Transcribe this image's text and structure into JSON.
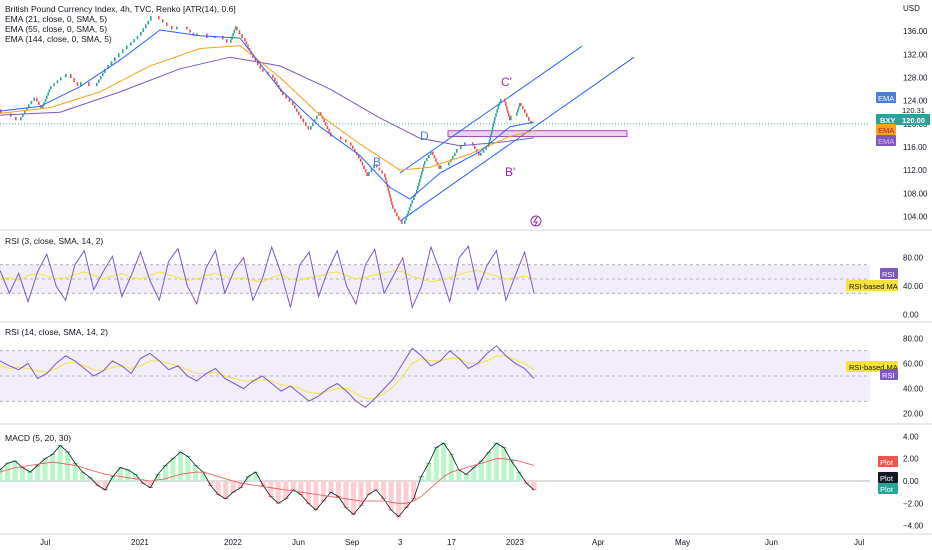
{
  "legend": {
    "title": "British Pound Currency Index, 4h, TVC, Renko [ATR(14), 0.6]",
    "ema21": "EMA (21, close, 0, SMA, 5)",
    "ema55": "EMA (55, close, 0, SMA, 5)",
    "ema144": "EMA (144, close, 0, SMA, 5)",
    "rsi3": "RSI (3, close, SMA, 14, 2)",
    "rsi14": "RSI (14, close, SMA, 14, 2)",
    "macd": "MACD (5, 20, 30)"
  },
  "annotations": {
    "b": "B",
    "d": "D",
    "c": "C'",
    "b2": "B'"
  },
  "tags": {
    "ema1": "EMA",
    "price1": "120.31",
    "sym": "BXY",
    "price2": "120.00",
    "ema2": "EMA",
    "ema3": "EMA",
    "rsi": "RSI",
    "rsima": "RSI-based MA",
    "rsima2": "RSI-based MA",
    "rsi2": "RSI",
    "plot1": "Plot",
    "plot2": "Plot",
    "plot3": "Plot"
  },
  "colors": {
    "up": "#26a69a",
    "down": "#ef5350",
    "ema21": "#2962ff",
    "ema55": "#f7a21b",
    "ema144": "#7e57c2",
    "channel": "#2962ff",
    "zone": "#e1bee7",
    "rsi": "#7e57c2",
    "rsima": "#f5e33b"
  },
  "chart_data": [
    {
      "type": "candlestick",
      "title": "British Pound Currency Index, 4h, TVC, Renko [ATR(14), 0.6]",
      "y_axis_label": "USD",
      "ylim": [
        102,
        140
      ],
      "y_ticks": [
        "136.00",
        "132.00",
        "128.00",
        "124.00",
        "120.00",
        "116.00",
        "112.00",
        "108.00",
        "104.00"
      ],
      "x_ticks": [
        "Jul",
        "2021",
        "2022",
        "Jun",
        "Sep",
        "3",
        "17",
        "2023",
        "Apr",
        "May",
        "Jun",
        "Jul"
      ],
      "close_path": [
        [
          0,
          122.5
        ],
        [
          10,
          121.8
        ],
        [
          20,
          120.6
        ],
        [
          28,
          122.8
        ],
        [
          36,
          124.5
        ],
        [
          42,
          122.6
        ],
        [
          50,
          126.0
        ],
        [
          60,
          127.5
        ],
        [
          70,
          128.6
        ],
        [
          80,
          126.5
        ],
        [
          88,
          127.2
        ],
        [
          96,
          126.5
        ],
        [
          104,
          128.8
        ],
        [
          114,
          130.8
        ],
        [
          122,
          132.2
        ],
        [
          130,
          133.5
        ],
        [
          140,
          135.2
        ],
        [
          150,
          137.8
        ],
        [
          158,
          138.6
        ],
        [
          166,
          137.5
        ],
        [
          176,
          136.3
        ],
        [
          186,
          136.8
        ],
        [
          196,
          135.2
        ],
        [
          206,
          135.6
        ],
        [
          214,
          134.8
        ],
        [
          222,
          135.2
        ],
        [
          230,
          134.0
        ],
        [
          236,
          136.8
        ],
        [
          244,
          134.8
        ],
        [
          252,
          132.0
        ],
        [
          262,
          129.5
        ],
        [
          272,
          128.5
        ],
        [
          282,
          125.5
        ],
        [
          292,
          123.8
        ],
        [
          300,
          121.5
        ],
        [
          310,
          119.0
        ],
        [
          320,
          122.0
        ],
        [
          330,
          118.5
        ],
        [
          340,
          117.8
        ],
        [
          350,
          116.8
        ],
        [
          360,
          114.0
        ],
        [
          368,
          111.0
        ],
        [
          376,
          113.0
        ],
        [
          384,
          111.4
        ],
        [
          392,
          106.0
        ],
        [
          398,
          104.0
        ],
        [
          404,
          102.7
        ],
        [
          410,
          105.6
        ],
        [
          416,
          108.0
        ],
        [
          424,
          113.0
        ],
        [
          432,
          115.2
        ],
        [
          440,
          112.2
        ],
        [
          448,
          112.8
        ],
        [
          456,
          115.0
        ],
        [
          464,
          116.3
        ],
        [
          472,
          116.8
        ],
        [
          480,
          114.5
        ],
        [
          488,
          116.0
        ],
        [
          494,
          120.6
        ],
        [
          500,
          123.8
        ],
        [
          504,
          124.3
        ],
        [
          510,
          120.6
        ],
        [
          516,
          121.4
        ],
        [
          520,
          123.6
        ],
        [
          524,
          122.5
        ],
        [
          530,
          120.5
        ],
        [
          534,
          120.0
        ]
      ],
      "ema21": [
        [
          0,
          122.2
        ],
        [
          40,
          123.0
        ],
        [
          80,
          126.4
        ],
        [
          120,
          131.0
        ],
        [
          160,
          136.2
        ],
        [
          200,
          135.2
        ],
        [
          240,
          134.8
        ],
        [
          280,
          126.0
        ],
        [
          320,
          119.5
        ],
        [
          360,
          114.5
        ],
        [
          390,
          109.0
        ],
        [
          410,
          107.0
        ],
        [
          440,
          111.5
        ],
        [
          480,
          115.2
        ],
        [
          510,
          119.5
        ],
        [
          534,
          120.3
        ]
      ],
      "ema55": [
        [
          0,
          121.8
        ],
        [
          50,
          122.8
        ],
        [
          100,
          125.5
        ],
        [
          150,
          130.0
        ],
        [
          200,
          133.0
        ],
        [
          240,
          133.5
        ],
        [
          280,
          128.0
        ],
        [
          320,
          121.5
        ],
        [
          360,
          116.5
        ],
        [
          400,
          112.0
        ],
        [
          430,
          112.5
        ],
        [
          470,
          114.8
        ],
        [
          510,
          117.8
        ],
        [
          534,
          118.8
        ]
      ],
      "ema144": [
        [
          0,
          121.5
        ],
        [
          60,
          122.0
        ],
        [
          120,
          125.5
        ],
        [
          180,
          129.5
        ],
        [
          230,
          131.5
        ],
        [
          280,
          130.0
        ],
        [
          330,
          126.0
        ],
        [
          380,
          121.0
        ],
        [
          420,
          117.5
        ],
        [
          460,
          116.2
        ],
        [
          500,
          116.8
        ],
        [
          534,
          117.6
        ]
      ],
      "channel_upper": [
        [
          400,
          111.5
        ],
        [
          582,
          133.4
        ]
      ],
      "channel_lower": [
        [
          400,
          103.2
        ],
        [
          634,
          131.5
        ]
      ],
      "zone": {
        "x_from": 448,
        "x_to": 627,
        "y_from": 117.8,
        "y_to": 118.8
      },
      "last_price": 120.0,
      "ema_values": [
        120.31,
        118.8,
        117.6
      ]
    },
    {
      "type": "line",
      "title": "RSI (3, close, SMA, 14, 2)",
      "ylim": [
        -5,
        105
      ],
      "y_ticks": [
        "80.00",
        "40.00",
        "0.00"
      ],
      "band": [
        30,
        70
      ],
      "series": [
        {
          "values_osc": [
            62,
            30,
            58,
            18,
            60,
            85,
            40,
            20,
            70,
            90,
            35,
            60,
            82,
            25,
            55,
            88,
            48,
            20,
            75,
            93,
            40,
            15,
            66,
            90,
            30,
            62,
            80,
            20,
            50,
            95,
            58,
            10,
            70,
            88,
            25,
            62,
            90,
            40,
            15,
            70,
            92,
            30,
            55,
            80,
            10,
            40,
            95,
            60,
            18,
            80,
            96,
            35,
            70,
            90,
            20,
            55,
            88,
            30
          ]
        },
        {
          "values_ma": [
            50,
            52,
            48,
            55,
            58,
            54,
            50,
            52,
            56,
            60,
            55,
            50,
            54,
            58,
            52,
            50,
            55,
            60,
            56,
            52,
            48,
            50,
            55,
            58,
            54,
            50,
            52,
            48,
            46,
            52,
            56,
            50,
            48,
            52,
            54,
            58,
            60,
            55,
            50,
            52,
            56,
            58,
            62,
            60,
            54,
            50,
            46,
            48,
            52,
            56,
            60,
            62,
            58,
            54,
            50,
            52,
            54,
            50
          ]
        }
      ]
    },
    {
      "type": "line",
      "title": "RSI (14, close, SMA, 14, 2)",
      "ylim": [
        15,
        85
      ],
      "y_ticks": [
        "80.00",
        "60.00",
        "40.00",
        "20.00"
      ],
      "band": [
        30,
        70
      ],
      "series": [
        {
          "values_osc": [
            62,
            58,
            55,
            60,
            48,
            52,
            60,
            66,
            62,
            56,
            50,
            54,
            62,
            58,
            52,
            64,
            68,
            62,
            55,
            58,
            50,
            46,
            52,
            56,
            48,
            44,
            40,
            46,
            50,
            44,
            38,
            42,
            36,
            30,
            34,
            40,
            44,
            38,
            30,
            25,
            32,
            40,
            48,
            60,
            72,
            66,
            58,
            62,
            70,
            64,
            56,
            60,
            68,
            74,
            66,
            60,
            56,
            48
          ]
        },
        {
          "values_ma": [
            58,
            56,
            57,
            56,
            54,
            53,
            56,
            60,
            61,
            58,
            55,
            54,
            57,
            58,
            56,
            58,
            62,
            62,
            60,
            58,
            55,
            52,
            52,
            53,
            50,
            48,
            46,
            46,
            47,
            46,
            43,
            42,
            40,
            37,
            36,
            38,
            40,
            40,
            36,
            32,
            32,
            36,
            42,
            50,
            60,
            64,
            62,
            62,
            64,
            64,
            60,
            60,
            62,
            66,
            66,
            63,
            60,
            55
          ]
        }
      ]
    },
    {
      "type": "bar",
      "title": "MACD (5, 20, 30)",
      "ylim": [
        -4.4,
        4.4
      ],
      "y_ticks": [
        "4.00",
        "2.00",
        "0.00",
        "−2.00",
        "−4.00"
      ],
      "histogram": [
        1.0,
        1.6,
        1.8,
        1.2,
        0.8,
        1.4,
        2.0,
        2.4,
        3.2,
        2.6,
        1.6,
        0.8,
        0.3,
        -0.4,
        -0.8,
        0.4,
        1.2,
        1.0,
        0.6,
        -0.2,
        -0.6,
        0.6,
        1.4,
        2.0,
        2.6,
        2.2,
        1.4,
        0.8,
        -0.4,
        -1.2,
        -1.6,
        -1.0,
        -0.6,
        0.4,
        0.8,
        -0.4,
        -1.4,
        -2.0,
        -1.6,
        -0.8,
        -1.2,
        -2.0,
        -2.6,
        -1.8,
        -1.0,
        -1.4,
        -2.4,
        -3.0,
        -2.2,
        -1.2,
        -0.8,
        -1.6,
        -2.6,
        -3.2,
        -2.4,
        -1.6,
        0.4,
        1.6,
        3.0,
        3.4,
        2.4,
        1.0,
        0.6,
        1.2,
        1.8,
        2.6,
        3.4,
        3.0,
        1.8,
        0.8,
        -0.2,
        -0.8
      ],
      "signal": [
        0.8,
        1.0,
        1.2,
        1.3,
        1.4,
        1.5,
        1.6,
        1.7,
        1.6,
        1.5,
        1.4,
        1.2,
        1.0,
        0.8,
        0.6,
        0.5,
        0.4,
        0.3,
        0.2,
        0.1,
        0.0,
        0.1,
        0.2,
        0.4,
        0.6,
        0.7,
        0.8,
        0.8,
        0.6,
        0.4,
        0.2,
        0.0,
        -0.2,
        -0.3,
        -0.4,
        -0.5,
        -0.6,
        -0.7,
        -0.8,
        -0.9,
        -1.0,
        -1.1,
        -1.2,
        -1.3,
        -1.4,
        -1.5,
        -1.6,
        -1.7,
        -1.8,
        -1.8,
        -1.8,
        -1.8,
        -1.9,
        -2.0,
        -2.0,
        -1.8,
        -1.4,
        -0.8,
        -0.2,
        0.4,
        0.8,
        1.0,
        1.2,
        1.4,
        1.6,
        1.8,
        2.0,
        2.0,
        1.9,
        1.8,
        1.6,
        1.4
      ]
    }
  ]
}
